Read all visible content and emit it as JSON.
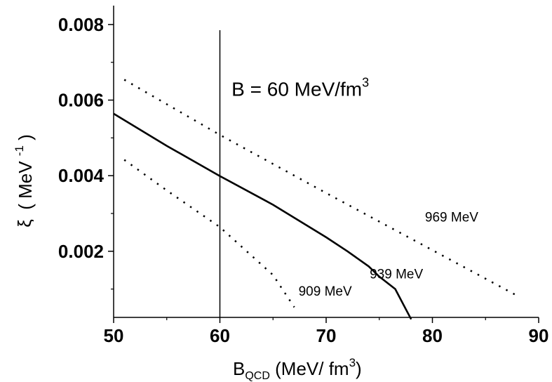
{
  "chart_data": {
    "type": "line",
    "xlabel": {
      "main": "B",
      "sub": "QCD",
      "rest": " (MeV/ fm",
      "sup": "3",
      "close": ")"
    },
    "ylabel": {
      "symbol": "ξ",
      "unit_main": "( MeV ",
      "sup": "-1",
      "unit_close": " )"
    },
    "xlim": [
      50,
      90
    ],
    "ylim": [
      0.00025,
      0.0085
    ],
    "x_ticks": [
      50,
      60,
      70,
      80,
      90
    ],
    "x_tick_labels": [
      "50",
      "60",
      "70",
      "80",
      "90"
    ],
    "y_ticks": [
      0.002,
      0.004,
      0.006,
      0.008
    ],
    "y_tick_labels": [
      "0.002",
      "0.004",
      "0.006",
      "0.008"
    ],
    "x_minor_ticks": [
      55,
      65,
      75,
      85
    ],
    "y_minor_ticks": [
      0.001,
      0.003,
      0.005,
      0.007
    ],
    "grid": false,
    "series": [
      {
        "name": "939 MeV",
        "style": "solid",
        "x": [
          50,
          55,
          60,
          65,
          70,
          72,
          74,
          75,
          76.5,
          78
        ],
        "y": [
          0.00564,
          0.00479,
          0.00399,
          0.00323,
          0.00237,
          0.002,
          0.0016,
          0.00133,
          0.001,
          0.0002
        ]
      },
      {
        "name": "969 MeV",
        "style": "dotted",
        "x": [
          51,
          60,
          70,
          80,
          88
        ],
        "y": [
          0.00654,
          0.00508,
          0.00354,
          0.00203,
          0.00082
        ]
      },
      {
        "name": "909 MeV",
        "style": "dotted",
        "x": [
          51,
          55,
          60,
          65,
          67
        ],
        "y": [
          0.00442,
          0.00361,
          0.00264,
          0.00137,
          0.00052
        ]
      }
    ],
    "vline": {
      "x": 60,
      "y_top": 0.00785
    },
    "annotations": [
      {
        "text_main": "B = 60 MeV/fm",
        "sup": "3",
        "x": 61.1,
        "y": 0.00611,
        "size": "big"
      },
      {
        "text": "969 MeV",
        "x": 79.3,
        "y": 0.00279,
        "size": "small"
      },
      {
        "text": "939 MeV",
        "x": 74.1,
        "y": 0.00128,
        "size": "small"
      },
      {
        "text": "909 MeV",
        "x": 67.4,
        "y": 0.00083,
        "size": "small"
      }
    ]
  }
}
